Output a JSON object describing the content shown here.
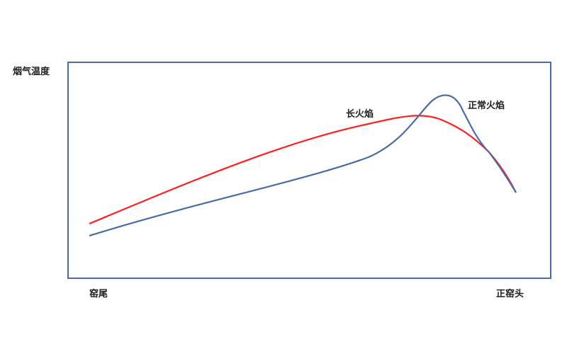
{
  "diagram": {
    "y_axis_label": "烟气温度",
    "x_start_label": "窑尾",
    "x_end_label": "正窑头",
    "series": [
      {
        "name": "长火焰",
        "color": "#ff2020"
      },
      {
        "name": "正常火焰",
        "color": "#4a6aa8"
      }
    ],
    "frame_color": "#4a6aa8"
  }
}
